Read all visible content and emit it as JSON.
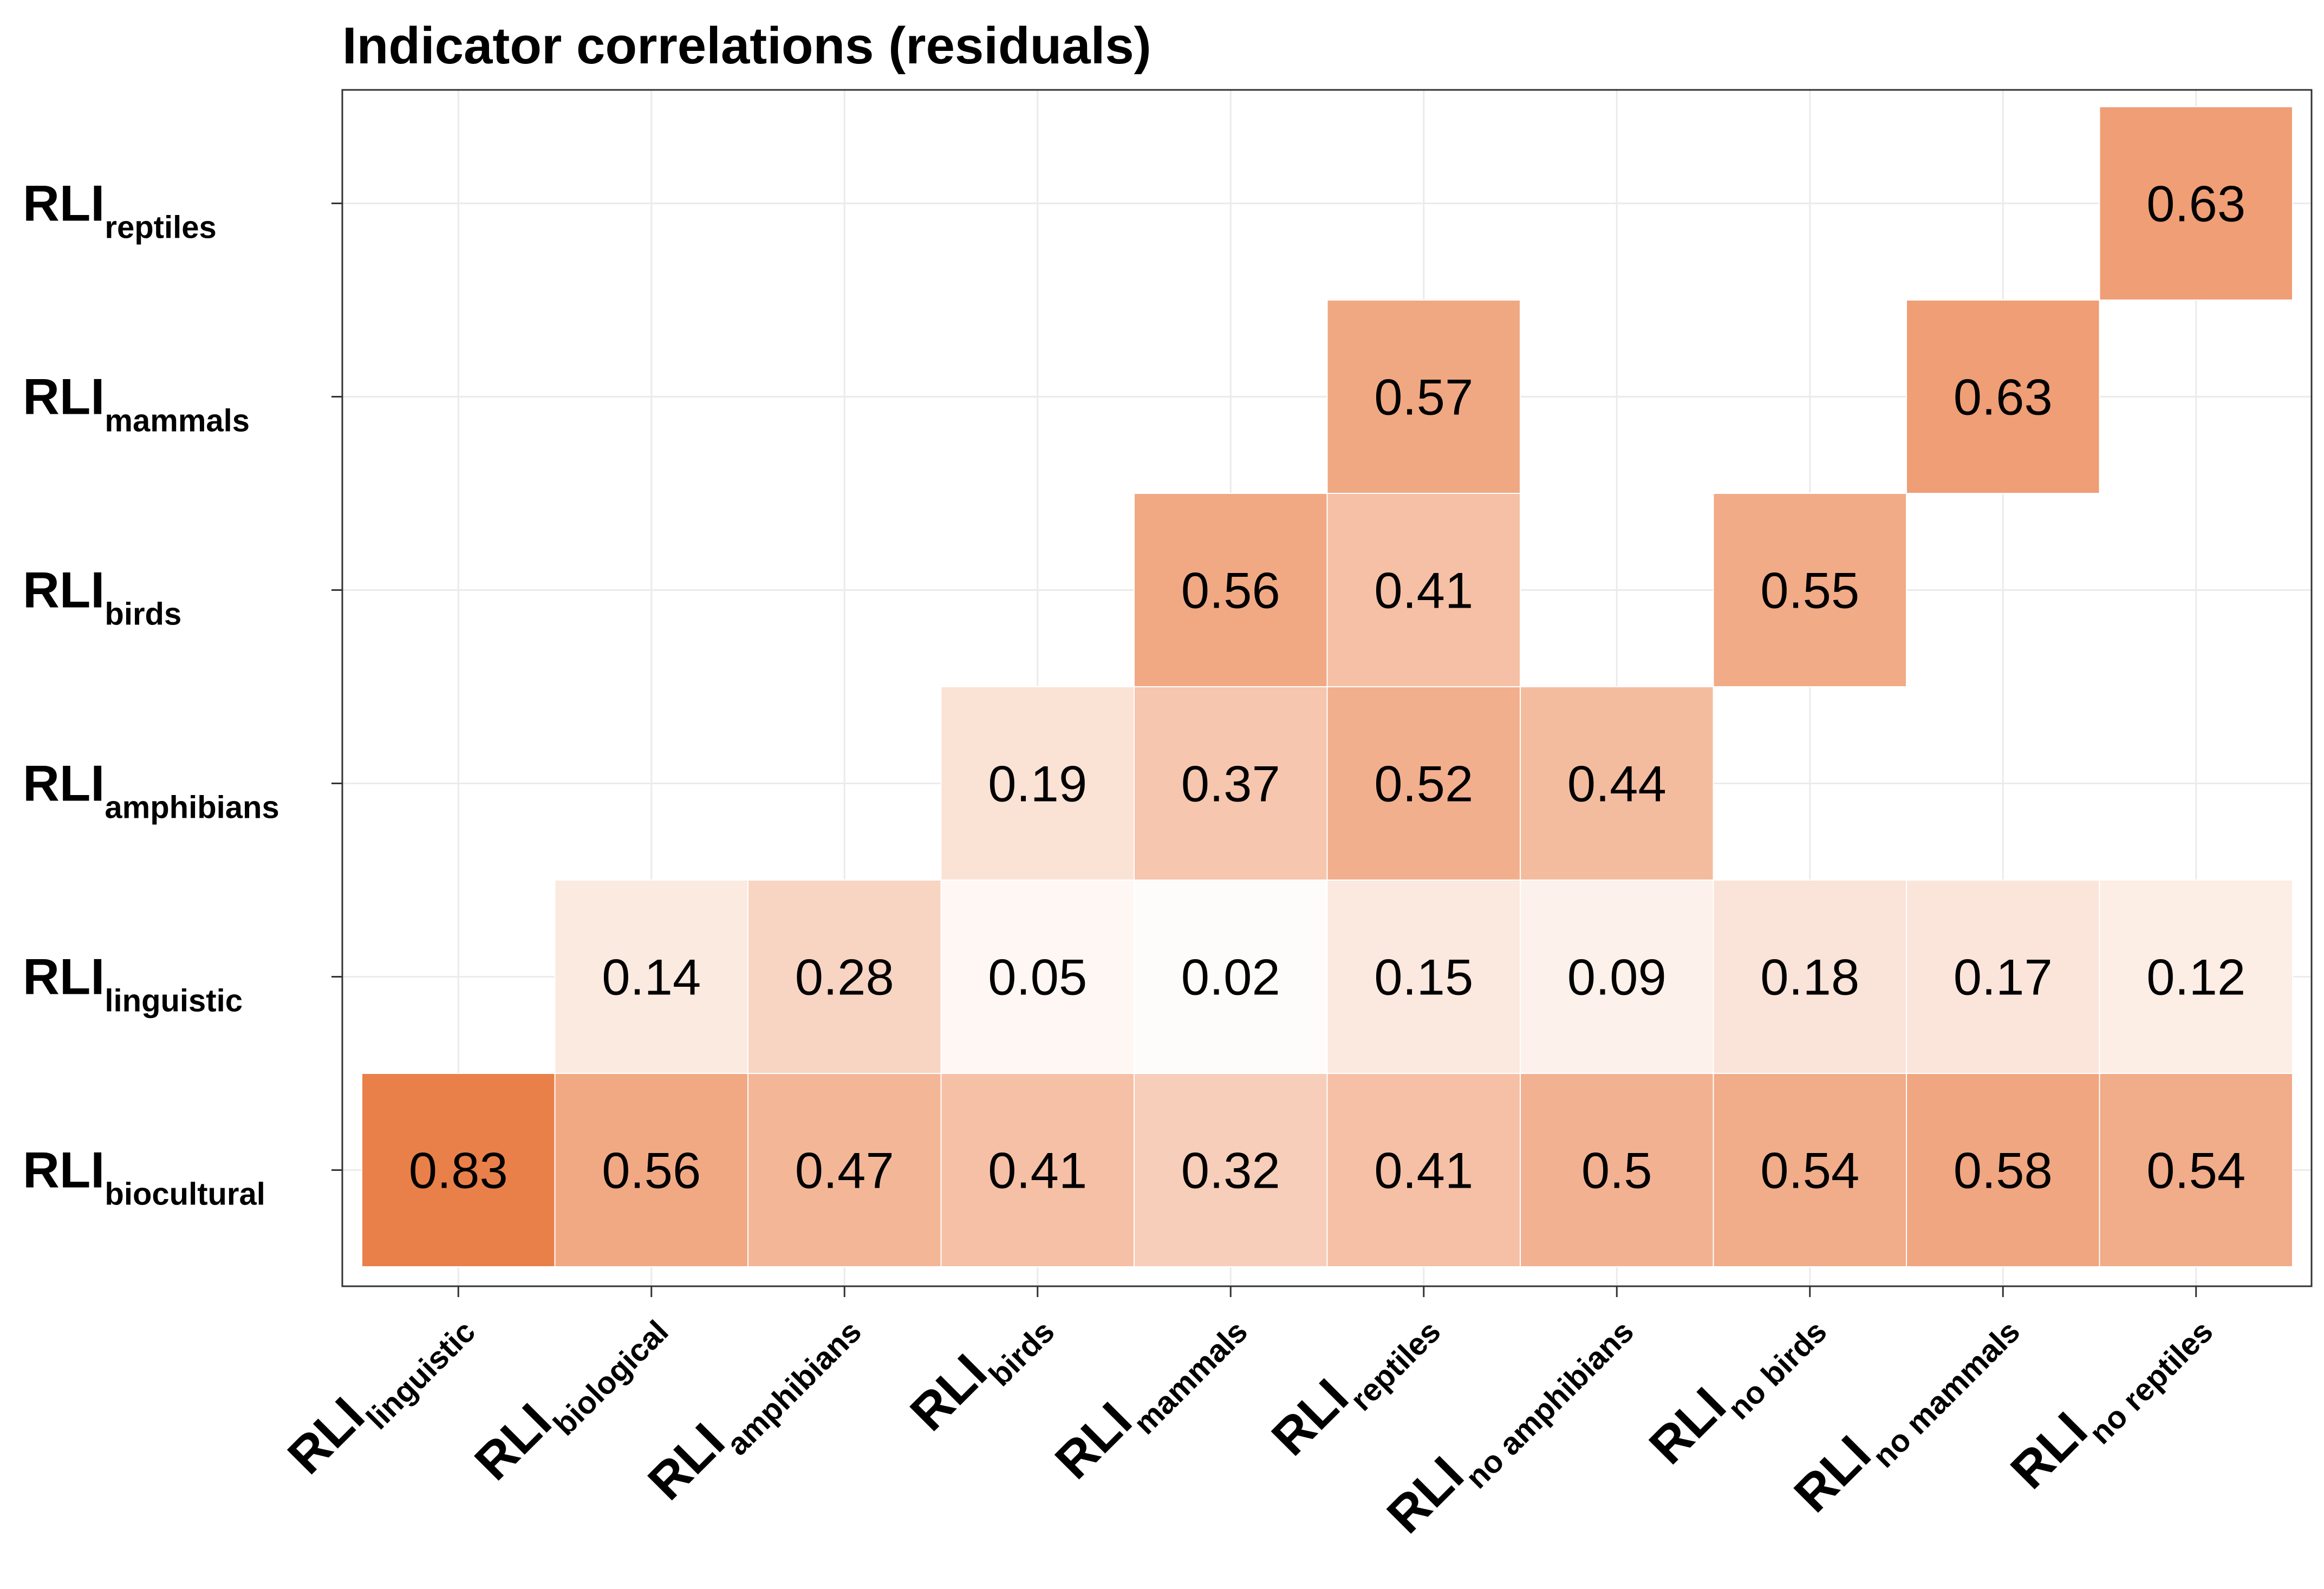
{
  "chart_data": {
    "type": "heatmap",
    "title": "Indicator correlations (residuals)",
    "xlabel": "",
    "ylabel": "",
    "grid": true,
    "legend": "none",
    "x_categories": [
      {
        "main": "RLI",
        "sub": "linguistic"
      },
      {
        "main": "RLI",
        "sub": "biological"
      },
      {
        "main": "RLI",
        "sub": "amphibians"
      },
      {
        "main": "RLI",
        "sub": "birds"
      },
      {
        "main": "RLI",
        "sub": "mammals"
      },
      {
        "main": "RLI",
        "sub": "reptiles"
      },
      {
        "main": "RLI",
        "sub": "no amphibians"
      },
      {
        "main": "RLI",
        "sub": "no birds"
      },
      {
        "main": "RLI",
        "sub": "no mammals"
      },
      {
        "main": "RLI",
        "sub": "no reptiles"
      }
    ],
    "y_categories": [
      {
        "main": "RLI",
        "sub": "biocultural"
      },
      {
        "main": "RLI",
        "sub": "linguistic"
      },
      {
        "main": "RLI",
        "sub": "amphibians"
      },
      {
        "main": "RLI",
        "sub": "birds"
      },
      {
        "main": "RLI",
        "sub": "mammals"
      },
      {
        "main": "RLI",
        "sub": "reptiles"
      }
    ],
    "cells": [
      {
        "x": 0,
        "y": 0,
        "value": 0.83,
        "label": "0.83"
      },
      {
        "x": 1,
        "y": 0,
        "value": 0.56,
        "label": "0.56"
      },
      {
        "x": 2,
        "y": 0,
        "value": 0.47,
        "label": "0.47"
      },
      {
        "x": 3,
        "y": 0,
        "value": 0.41,
        "label": "0.41"
      },
      {
        "x": 4,
        "y": 0,
        "value": 0.32,
        "label": "0.32"
      },
      {
        "x": 5,
        "y": 0,
        "value": 0.41,
        "label": "0.41"
      },
      {
        "x": 6,
        "y": 0,
        "value": 0.5,
        "label": "0.5"
      },
      {
        "x": 7,
        "y": 0,
        "value": 0.54,
        "label": "0.54"
      },
      {
        "x": 8,
        "y": 0,
        "value": 0.58,
        "label": "0.58"
      },
      {
        "x": 9,
        "y": 0,
        "value": 0.54,
        "label": "0.54"
      },
      {
        "x": 1,
        "y": 1,
        "value": 0.14,
        "label": "0.14"
      },
      {
        "x": 2,
        "y": 1,
        "value": 0.28,
        "label": "0.28"
      },
      {
        "x": 3,
        "y": 1,
        "value": 0.05,
        "label": "0.05"
      },
      {
        "x": 4,
        "y": 1,
        "value": 0.02,
        "label": "0.02"
      },
      {
        "x": 5,
        "y": 1,
        "value": 0.15,
        "label": "0.15"
      },
      {
        "x": 6,
        "y": 1,
        "value": 0.09,
        "label": "0.09"
      },
      {
        "x": 7,
        "y": 1,
        "value": 0.18,
        "label": "0.18"
      },
      {
        "x": 8,
        "y": 1,
        "value": 0.17,
        "label": "0.17"
      },
      {
        "x": 9,
        "y": 1,
        "value": 0.12,
        "label": "0.12"
      },
      {
        "x": 3,
        "y": 2,
        "value": 0.19,
        "label": "0.19"
      },
      {
        "x": 4,
        "y": 2,
        "value": 0.37,
        "label": "0.37"
      },
      {
        "x": 5,
        "y": 2,
        "value": 0.52,
        "label": "0.52"
      },
      {
        "x": 6,
        "y": 2,
        "value": 0.44,
        "label": "0.44"
      },
      {
        "x": 4,
        "y": 3,
        "value": 0.56,
        "label": "0.56"
      },
      {
        "x": 5,
        "y": 3,
        "value": 0.41,
        "label": "0.41"
      },
      {
        "x": 7,
        "y": 3,
        "value": 0.55,
        "label": "0.55"
      },
      {
        "x": 5,
        "y": 4,
        "value": 0.57,
        "label": "0.57"
      },
      {
        "x": 8,
        "y": 4,
        "value": 0.63,
        "label": "0.63"
      },
      {
        "x": 9,
        "y": 5,
        "value": 0.63,
        "label": "0.63"
      }
    ],
    "color_scale": {
      "low": "#ffffff",
      "high": "#e8753a",
      "domain": [
        0,
        0.9
      ]
    },
    "colors": {
      "grid": "#ebebeb",
      "panel_border": "#333333",
      "tick": "#333333",
      "text": "#000000"
    }
  }
}
